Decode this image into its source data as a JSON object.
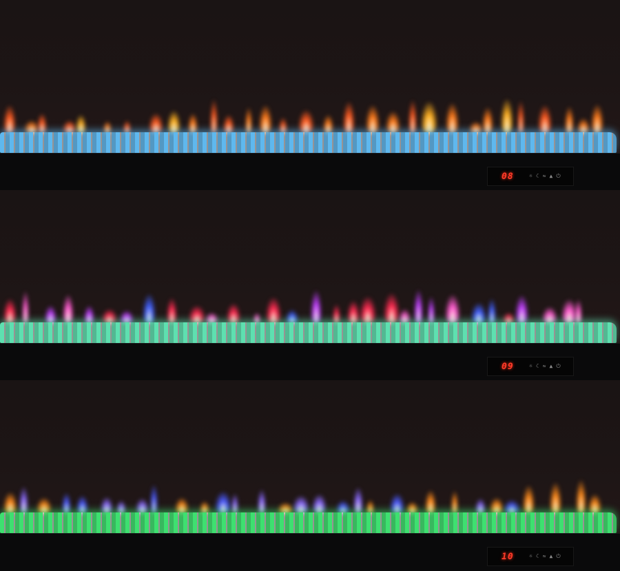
{
  "panels": [
    {
      "display": "08",
      "flame_colors": [
        "#ff7a1a",
        "#ffb020",
        "#ff5a20"
      ],
      "bed_color": "#5fb8ee"
    },
    {
      "display": "09",
      "flame_colors": [
        "#ff2a50",
        "#c040ff",
        "#ff5ad0",
        "#4060ff"
      ],
      "bed_color": "#5ee0b0"
    },
    {
      "display": "10",
      "flame_colors": [
        "#ff8a1a",
        "#4a5aff",
        "#8a6aff"
      ],
      "bed_color": "#3ee070"
    }
  ],
  "control_icons": [
    "brightness-icon",
    "timer-moon-icon",
    "heat-icon",
    "flame-icon",
    "power-icon"
  ],
  "control_glyphs": [
    "☼",
    "☾",
    "≈",
    "▲",
    "⏻"
  ]
}
